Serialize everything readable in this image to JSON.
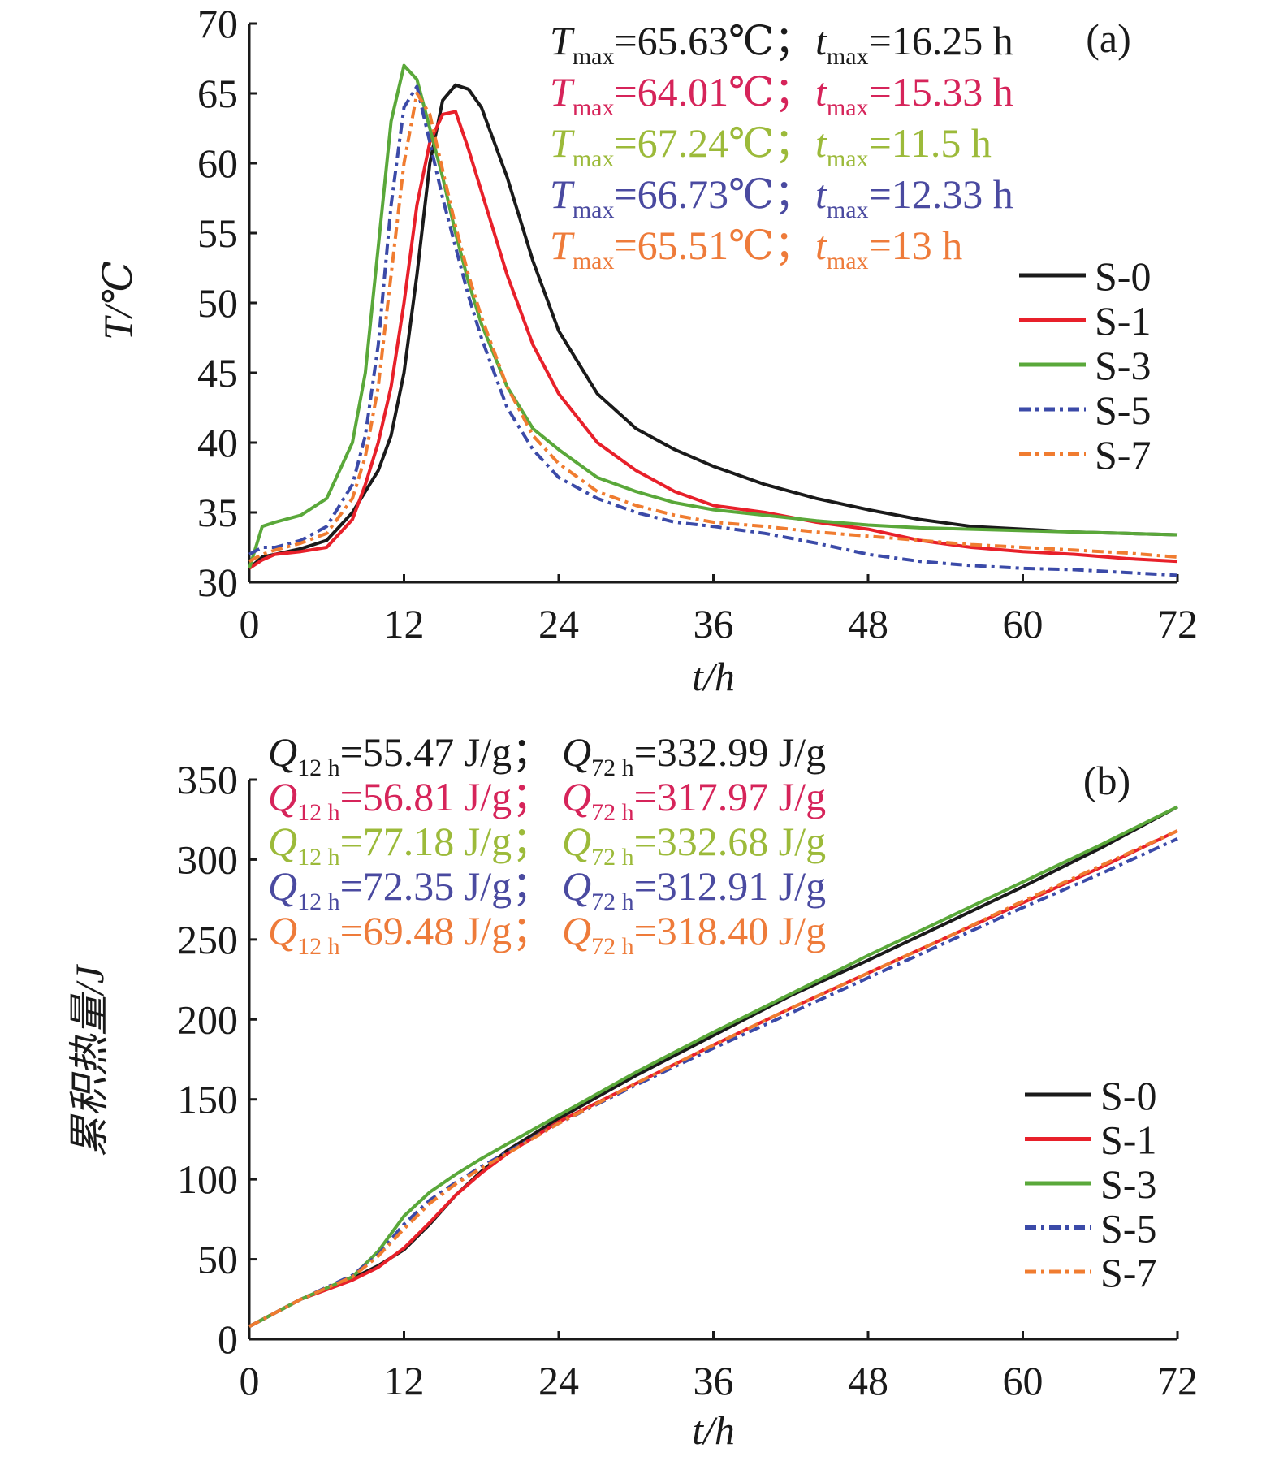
{
  "chart_data": [
    {
      "type": "line",
      "panel_label": "(a)",
      "xlabel": "t/h",
      "ylabel": "T/℃",
      "xlim": [
        0,
        72
      ],
      "xticks": [
        0,
        12,
        24,
        36,
        48,
        60,
        72
      ],
      "ylim": [
        30,
        70
      ],
      "yticks": [
        30,
        35,
        40,
        45,
        50,
        55,
        60,
        65,
        70
      ],
      "grid": false,
      "legend": "right",
      "x": [
        0,
        1,
        2,
        4,
        6,
        8,
        9,
        10,
        11,
        12,
        13,
        14,
        15,
        16,
        17,
        18,
        20,
        22,
        24,
        27,
        30,
        33,
        36,
        40,
        44,
        48,
        52,
        56,
        60,
        64,
        68,
        72
      ],
      "series": [
        {
          "name": "S-0",
          "color": "#1a1a1a",
          "style": "solid",
          "values": [
            31,
            31.8,
            32,
            32.4,
            33,
            35,
            36.5,
            38,
            40.5,
            45,
            52,
            60,
            64.5,
            65.6,
            65.3,
            64,
            59,
            53,
            48,
            43.5,
            41,
            39.5,
            38.3,
            37,
            36,
            35.2,
            34.5,
            34,
            33.8,
            33.6,
            33.5,
            33.4
          ]
        },
        {
          "name": "S-1",
          "color": "#e8202a",
          "style": "solid",
          "values": [
            31,
            31.6,
            32,
            32.2,
            32.5,
            34.5,
            37,
            40,
            44,
            50,
            57,
            61.5,
            63.5,
            63.7,
            61,
            58,
            52,
            47,
            43.5,
            40,
            38,
            36.5,
            35.5,
            35,
            34.3,
            33.8,
            33,
            32.5,
            32.2,
            32,
            31.7,
            31.5
          ]
        },
        {
          "name": "S-3",
          "color": "#5aa83a",
          "style": "solid",
          "values": [
            31,
            34,
            34.3,
            34.8,
            36,
            40,
            45,
            54,
            63,
            67,
            66,
            62.5,
            59,
            55,
            51.5,
            48.5,
            44,
            41,
            39.5,
            37.5,
            36.5,
            35.7,
            35.2,
            34.8,
            34.4,
            34.1,
            33.9,
            33.8,
            33.7,
            33.6,
            33.5,
            33.4
          ]
        },
        {
          "name": "S-5",
          "color": "#3b4aa8",
          "style": "dashdot",
          "values": [
            32,
            32.5,
            32.5,
            33,
            34,
            37,
            40.5,
            47,
            57,
            64,
            65.5,
            61.5,
            57.5,
            54,
            50.5,
            47.5,
            42.5,
            39.5,
            37.5,
            36,
            35,
            34.3,
            34,
            33.5,
            32.8,
            32,
            31.5,
            31.2,
            31,
            30.9,
            30.7,
            30.5
          ]
        },
        {
          "name": "S-7",
          "color": "#f07c30",
          "style": "dashdot",
          "values": [
            31.5,
            32,
            32.3,
            32.8,
            33.5,
            36,
            39,
            44,
            52,
            60,
            65,
            63.5,
            59.5,
            55.5,
            52,
            49,
            44,
            40.5,
            38.5,
            36.5,
            35.5,
            34.8,
            34.3,
            34,
            33.6,
            33.3,
            33,
            32.7,
            32.5,
            32.3,
            32.1,
            31.8
          ]
        }
      ],
      "annotations": [
        {
          "color": "#1a1a1a",
          "parts": [
            [
              "T",
              "max",
              "=65.63℃；"
            ],
            [
              "t",
              "max",
              "=16.25 h"
            ]
          ]
        },
        {
          "color": "#d6245a",
          "parts": [
            [
              "T",
              "max",
              "=64.01℃；"
            ],
            [
              "t",
              "max",
              "=15.33 h"
            ]
          ]
        },
        {
          "color": "#9cba3a",
          "parts": [
            [
              "T",
              "max",
              "=67.24℃；"
            ],
            [
              "t",
              "max",
              "=11.5 h"
            ]
          ]
        },
        {
          "color": "#4a4aa0",
          "parts": [
            [
              "T",
              "max",
              "=66.73℃；"
            ],
            [
              "t",
              "max",
              "=12.33 h"
            ]
          ]
        },
        {
          "color": "#ee7b3a",
          "parts": [
            [
              "T",
              "max",
              "=65.51℃；"
            ],
            [
              "t",
              "max",
              "=13 h"
            ]
          ]
        }
      ]
    },
    {
      "type": "line",
      "panel_label": "(b)",
      "xlabel": "t/h",
      "ylabel": "累积热量/J",
      "xlim": [
        0,
        72
      ],
      "xticks": [
        0,
        12,
        24,
        36,
        48,
        60,
        72
      ],
      "ylim": [
        0,
        350
      ],
      "yticks": [
        0,
        50,
        100,
        150,
        200,
        250,
        300,
        350
      ],
      "grid": false,
      "legend": "right",
      "x": [
        0,
        4,
        8,
        10,
        12,
        14,
        16,
        18,
        20,
        24,
        30,
        36,
        42,
        48,
        54,
        60,
        66,
        72
      ],
      "series": [
        {
          "name": "S-0",
          "color": "#1a1a1a",
          "style": "solid",
          "values": [
            8,
            25,
            38,
            46,
            56,
            72,
            90,
            105,
            118,
            138,
            165,
            190,
            215,
            237,
            260,
            283,
            307,
            333
          ]
        },
        {
          "name": "S-1",
          "color": "#e8202a",
          "style": "solid",
          "values": [
            8,
            25,
            37,
            45,
            57,
            73,
            90,
            104,
            116,
            136,
            160,
            184,
            207,
            229,
            251,
            273,
            295,
            318
          ]
        },
        {
          "name": "S-3",
          "color": "#5aa83a",
          "style": "solid",
          "values": [
            8,
            25,
            39,
            55,
            77,
            92,
            103,
            113,
            122,
            140,
            167,
            192,
            216,
            240,
            263,
            286,
            309,
            333
          ]
        },
        {
          "name": "S-5",
          "color": "#3b4aa8",
          "style": "dashdot",
          "values": [
            8,
            25,
            40,
            53,
            72,
            87,
            98,
            108,
            117,
            135,
            159,
            182,
            204,
            226,
            248,
            270,
            291,
            313
          ]
        },
        {
          "name": "S-7",
          "color": "#f07c30",
          "style": "dashdot",
          "values": [
            8,
            25,
            39,
            52,
            69,
            85,
            97,
            107,
            116,
            135,
            160,
            184,
            207,
            229,
            251,
            274,
            296,
            318
          ]
        }
      ],
      "annotations": [
        {
          "color": "#1a1a1a",
          "parts": [
            [
              "Q",
              "12 h",
              "=55.47 J/g；"
            ],
            [
              "Q",
              "72 h",
              "=332.99 J/g"
            ]
          ]
        },
        {
          "color": "#d6245a",
          "parts": [
            [
              "Q",
              "12 h",
              "=56.81 J/g；"
            ],
            [
              "Q",
              "72 h",
              "=317.97 J/g"
            ]
          ]
        },
        {
          "color": "#9cba3a",
          "parts": [
            [
              "Q",
              "12 h",
              "=77.18 J/g；"
            ],
            [
              "Q",
              "72 h",
              "=332.68 J/g"
            ]
          ]
        },
        {
          "color": "#4a4aa0",
          "parts": [
            [
              "Q",
              "12 h",
              "=72.35 J/g；"
            ],
            [
              "Q",
              "72 h",
              "=312.91 J/g"
            ]
          ]
        },
        {
          "color": "#ee7b3a",
          "parts": [
            [
              "Q",
              "12 h",
              "=69.48 J/g；"
            ],
            [
              "Q",
              "72 h",
              "=318.40 J/g"
            ]
          ]
        }
      ]
    }
  ]
}
